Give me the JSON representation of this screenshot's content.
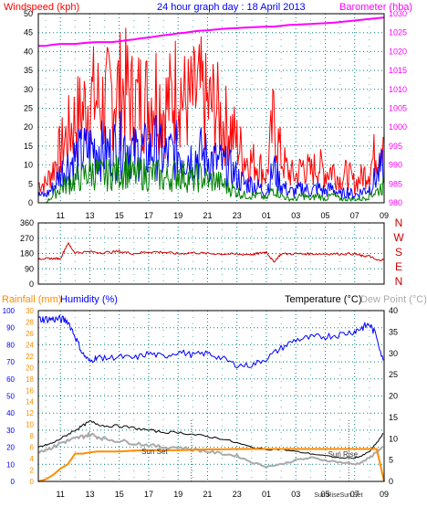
{
  "title": "24 hour graph day : 18 April 2013",
  "colors": {
    "wind": "#ff0000",
    "gust_series": "#ff0000",
    "avg_series": "#0000ff",
    "low_series": "#008000",
    "barometer": "#ff00ff",
    "direction": "#cc0000",
    "humidity": "#0000ff",
    "temperature": "#000000",
    "dewpoint": "#aaaaaa",
    "rainfall": "#ff8c00",
    "grid": "#008080",
    "frame": "#000000"
  },
  "x_ticks": [
    "11",
    "13",
    "15",
    "17",
    "19",
    "21",
    "23",
    "01",
    "03",
    "05",
    "07",
    "09"
  ],
  "chart_data": [
    {
      "type": "line",
      "panel": "wind",
      "ylabel": "Windspeed (kph)",
      "y2label": "Barometer (hba)",
      "ylim": [
        0,
        50
      ],
      "y2lim": [
        980,
        1030
      ],
      "yticks": [
        0,
        5,
        10,
        15,
        20,
        25,
        30,
        35,
        40,
        45,
        50
      ],
      "y2ticks": [
        980,
        985,
        990,
        995,
        1000,
        1005,
        1010,
        1015,
        1020,
        1025,
        1030
      ],
      "grid": true,
      "x_hours": [
        9.5,
        10,
        10.5,
        11,
        11.5,
        12,
        12.5,
        13,
        13.5,
        14,
        14.5,
        15,
        15.5,
        16,
        16.5,
        17,
        17.5,
        18,
        18.5,
        19,
        19.5,
        20,
        20.5,
        21,
        21.5,
        22,
        22.5,
        23,
        23.5,
        24,
        24.5,
        25,
        25.5,
        26,
        26.5,
        27,
        27.5,
        28,
        28.5,
        29,
        29.5,
        30,
        30.5,
        31,
        31.5,
        32,
        32.5,
        33
      ],
      "series": [
        {
          "values": [
            5,
            5,
            9,
            14,
            18,
            22,
            24,
            28,
            27,
            26,
            29,
            30,
            30,
            26,
            28,
            27,
            30,
            25,
            27,
            32,
            26,
            27,
            29,
            25,
            26,
            21,
            20,
            16,
            12,
            11,
            10,
            7,
            22,
            12,
            8,
            7,
            10,
            8,
            10,
            8,
            9,
            6,
            8,
            5,
            7,
            9,
            14,
            20
          ]
        },
        {
          "values": [
            2,
            2,
            4,
            8,
            10,
            12,
            13,
            14,
            15,
            13,
            14,
            15,
            16,
            13,
            14,
            13,
            15,
            12,
            13,
            14,
            13,
            12,
            13,
            12,
            11,
            10,
            9,
            7,
            5,
            5,
            4,
            3,
            9,
            5,
            3,
            3,
            4,
            3,
            4,
            3,
            4,
            2,
            3,
            2,
            3,
            4,
            7,
            10
          ]
        },
        {
          "values": [
            0,
            0,
            2,
            4,
            5,
            6,
            7,
            8,
            8,
            7,
            8,
            8,
            9,
            7,
            8,
            7,
            8,
            6,
            7,
            8,
            7,
            6,
            7,
            6,
            6,
            5,
            4,
            3,
            2,
            2,
            2,
            1,
            4,
            2,
            1,
            1,
            2,
            1,
            2,
            1,
            2,
            1,
            1,
            1,
            1,
            2,
            3,
            5
          ]
        },
        {
          "values": [
            1021.5,
            1021.5,
            1021.8,
            1022.0,
            1022.0,
            1022.0,
            1022.2,
            1022.4,
            1022.5,
            1022.5,
            1022.5,
            1022.7,
            1023.0,
            1023.2,
            1023.5,
            1023.7,
            1024.0,
            1024.3,
            1024.5,
            1024.8,
            1025.0,
            1025.3,
            1025.5,
            1025.6,
            1025.8,
            1026.0,
            1026.1,
            1026.2,
            1026.3,
            1026.4,
            1026.5,
            1026.6,
            1026.6,
            1026.8,
            1027.0,
            1027.1,
            1027.2,
            1027.3,
            1027.4,
            1027.5,
            1027.6,
            1027.8,
            1028.0,
            1028.2,
            1028.4,
            1028.6,
            1028.8,
            1029.0
          ]
        }
      ]
    },
    {
      "type": "line",
      "panel": "direction",
      "ylim": [
        0,
        360
      ],
      "yticks": [
        0,
        90,
        180,
        270,
        360
      ],
      "y2labels": [
        "N",
        "W",
        "S",
        "E",
        "N"
      ],
      "grid": true,
      "x_hours": [
        9.5,
        10,
        10.5,
        11,
        11.5,
        12,
        13,
        14,
        15,
        16,
        17,
        18,
        19,
        20,
        21,
        22,
        23,
        24,
        24.5,
        25,
        25.5,
        26,
        27,
        28,
        29,
        30,
        31,
        31.5,
        32,
        32.5,
        33
      ],
      "series": [
        {
          "values": [
            150,
            150,
            150,
            150,
            240,
            185,
            190,
            185,
            192,
            180,
            190,
            188,
            178,
            185,
            180,
            178,
            175,
            175,
            180,
            190,
            130,
            178,
            178,
            178,
            178,
            178,
            178,
            165,
            165,
            140,
            145
          ]
        }
      ]
    },
    {
      "type": "line",
      "panel": "temperature",
      "ylabel": "Rainfall (mm)",
      "ylabel2": "Humidity (%)",
      "y2label": "Temperature (°C)",
      "y2label2": "Dew Point (°C)",
      "ylim": [
        0,
        100
      ],
      "ylim_rain": [
        0,
        30
      ],
      "y2lim": [
        0,
        40
      ],
      "yticks": [
        0,
        10,
        20,
        30,
        40,
        50,
        60,
        70,
        80,
        90,
        100
      ],
      "yticks_rain": [
        0,
        2,
        4,
        6,
        8,
        10,
        12,
        14,
        16,
        18,
        20,
        22,
        24,
        26,
        28,
        30
      ],
      "y2ticks": [
        0,
        5,
        10,
        15,
        20,
        25,
        30,
        35,
        40
      ],
      "grid": true,
      "annotations": [
        "Sun Set",
        "Sun Rise",
        "Sun Rise",
        "Sun Set"
      ],
      "x_hours": [
        9.5,
        10,
        10.5,
        11,
        11.5,
        12,
        12.5,
        13,
        13.5,
        14,
        15,
        16,
        17,
        18,
        19,
        20,
        21,
        22,
        23,
        24,
        25,
        26,
        27,
        28,
        29,
        30,
        31,
        31.5,
        32,
        32.5,
        33
      ],
      "series": [
        {
          "values": [
            95,
            95,
            95,
            95,
            94,
            85,
            75,
            70,
            73,
            72,
            73,
            72,
            75,
            73,
            76,
            74,
            75,
            72,
            68,
            68,
            72,
            78,
            83,
            84,
            85,
            86,
            88,
            90,
            92,
            85,
            68
          ]
        },
        {
          "values": [
            8,
            8.5,
            9,
            10,
            11,
            12,
            13,
            14,
            13.5,
            13,
            13,
            12.5,
            12,
            11.5,
            11.5,
            11,
            10.5,
            10,
            9,
            8,
            7.5,
            7.5,
            7,
            6.5,
            6,
            5.5,
            5.5,
            6,
            7,
            9,
            11.5
          ]
        },
        {
          "values": [
            7,
            7.5,
            8,
            9,
            9.5,
            10,
            10.5,
            11,
            10.5,
            10,
            9.5,
            9,
            8.5,
            8,
            8,
            7.5,
            7,
            6.5,
            6,
            4.5,
            3.5,
            4,
            5,
            5.5,
            5,
            4.5,
            4,
            4.5,
            5.5,
            7,
            8
          ]
        },
        {
          "values": [
            0,
            0.5,
            1.5,
            3,
            4,
            6.5,
            6.5,
            6.8,
            7,
            7,
            7,
            7.2,
            7.3,
            7.3,
            7.3,
            7.4,
            7.5,
            7.5,
            7.6,
            7.6,
            7.6,
            7.6,
            7.6,
            7.6,
            7.6,
            7.6,
            7.6,
            7.6,
            7.6,
            7.6,
            0
          ]
        }
      ]
    }
  ]
}
